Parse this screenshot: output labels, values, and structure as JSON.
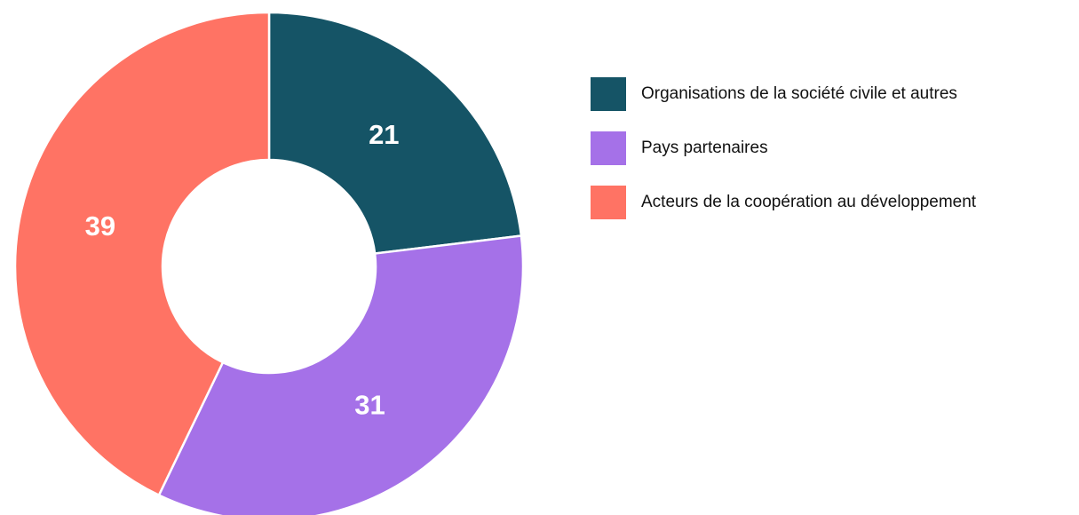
{
  "chart_data": {
    "type": "donut",
    "categories": [
      "Organisations de la société civile et autres",
      "Pays partenaires",
      "Acteurs de la coopération au développement"
    ],
    "values": [
      21,
      31,
      39
    ],
    "colors": [
      "#155466",
      "#a571e8",
      "#ff7364"
    ],
    "legend": "right"
  }
}
